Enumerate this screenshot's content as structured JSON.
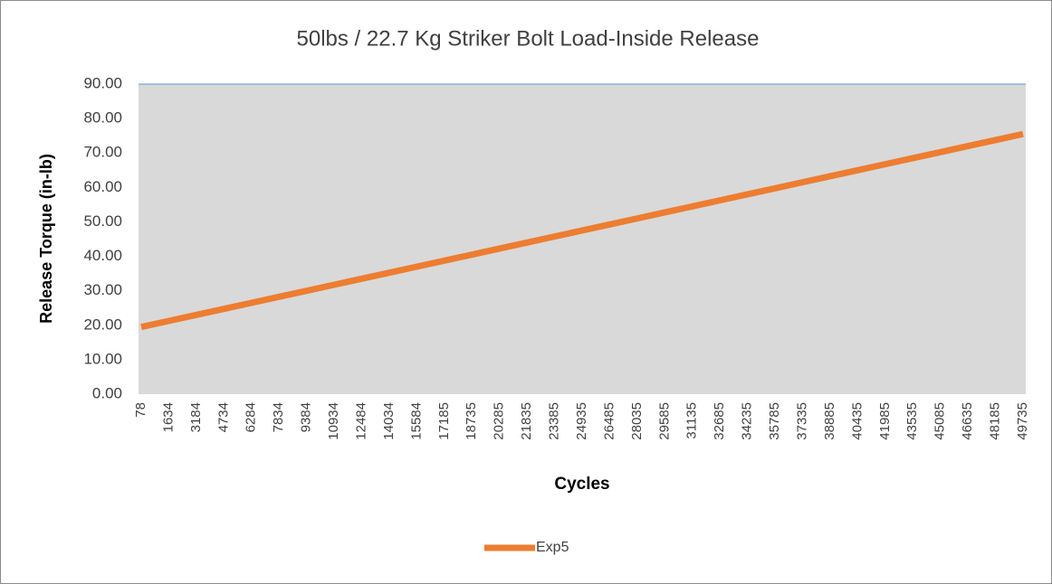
{
  "chart_data": {
    "type": "line",
    "title": "50lbs / 22.7 Kg Striker Bolt Load-Inside Release",
    "x_label": "Cycles",
    "y_label": "Release Torque (in-lb)",
    "categories": [
      "78",
      "1634",
      "3184",
      "4734",
      "6284",
      "7834",
      "9384",
      "10934",
      "12484",
      "14034",
      "15584",
      "17185",
      "18735",
      "20285",
      "21835",
      "23385",
      "24935",
      "26485",
      "28035",
      "29585",
      "31135",
      "32685",
      "34235",
      "35785",
      "37335",
      "38885",
      "40435",
      "41985",
      "43535",
      "45085",
      "46635",
      "48185",
      "49735"
    ],
    "series": [
      {
        "name": "Exp5",
        "color": "#ed7d31",
        "values": [
          19.5,
          21.25,
          23.0,
          24.75,
          26.5,
          28.25,
          30.0,
          31.75,
          33.5,
          35.25,
          37.0,
          38.75,
          40.5,
          42.25,
          44.0,
          45.75,
          47.5,
          49.25,
          51.0,
          52.75,
          54.5,
          56.25,
          58.0,
          59.75,
          61.5,
          63.25,
          65.0,
          66.75,
          68.5,
          70.25,
          72.0,
          73.75,
          75.5
        ]
      }
    ],
    "ylim": [
      0,
      90
    ],
    "yticks": [
      {
        "value": 0,
        "label": "0.00"
      },
      {
        "value": 10,
        "label": "10.00"
      },
      {
        "value": 20,
        "label": "20.00"
      },
      {
        "value": 30,
        "label": "30.00"
      },
      {
        "value": 40,
        "label": "40.00"
      },
      {
        "value": 50,
        "label": "50.00"
      },
      {
        "value": 60,
        "label": "60.00"
      },
      {
        "value": 70,
        "label": "70.00"
      },
      {
        "value": 80,
        "label": "80.00"
      },
      {
        "value": 90,
        "label": "90.00"
      }
    ],
    "grid": false,
    "legend": "bottom",
    "plot_background": "#d9d9d9"
  }
}
